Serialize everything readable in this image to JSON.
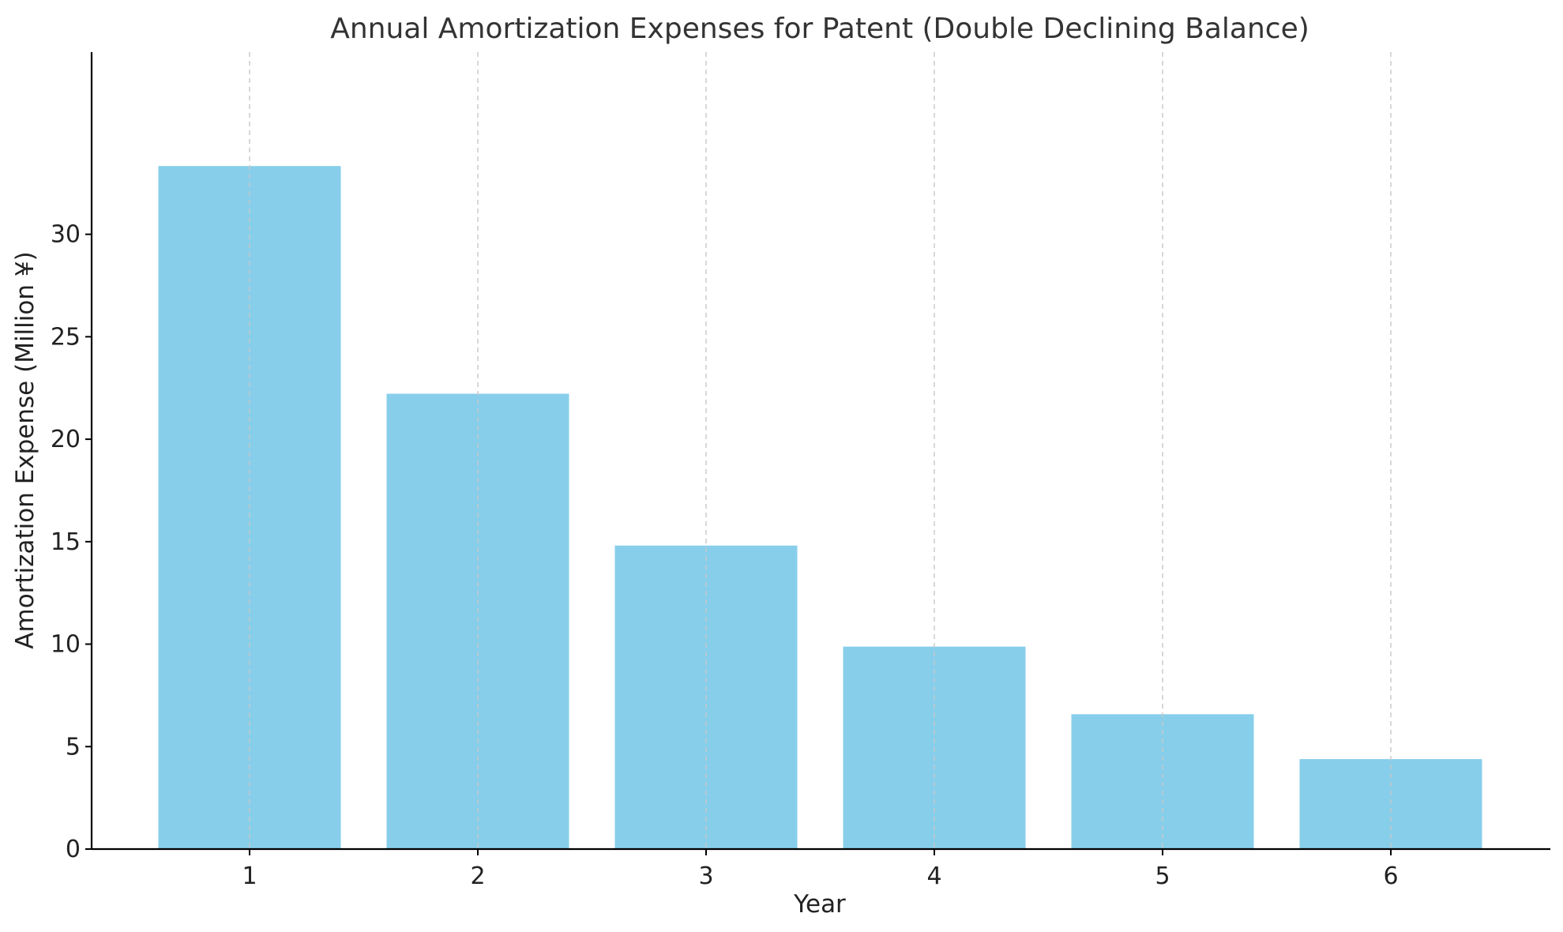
{
  "chart_data": {
    "type": "bar",
    "title": "Annual Amortization Expenses for Patent (Double Declining Balance)",
    "xlabel": "Year",
    "ylabel": "Amortization Expense (Million ¥)",
    "categories": [
      "1",
      "2",
      "3",
      "4",
      "5",
      "6"
    ],
    "values": [
      33.33,
      22.22,
      14.81,
      9.88,
      6.58,
      4.39
    ],
    "ylim": [
      0,
      35
    ],
    "yticks": [
      "0",
      "5",
      "10",
      "15",
      "20",
      "25",
      "30"
    ],
    "grid": "x-axis dashed vertical lines",
    "legend": "none",
    "bar_color": "#87ceeb"
  }
}
